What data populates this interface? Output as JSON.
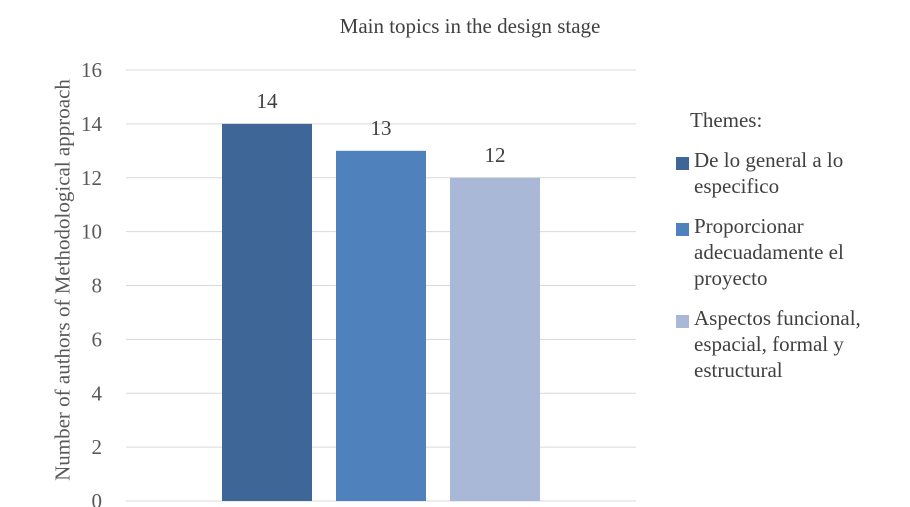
{
  "chart_data": {
    "type": "bar",
    "title": "Main topics in the design stage",
    "xlabel": "",
    "ylabel": "Number of authors of Methodological approach",
    "ylim": [
      0,
      16
    ],
    "yticks": [
      "0",
      "2",
      "4",
      "6",
      "8",
      "10",
      "12",
      "14",
      "16"
    ],
    "grid": true,
    "legend_position": "right",
    "legend_title": "Themes:",
    "series": [
      {
        "name": "De lo general a lo especifico",
        "values": [
          14
        ],
        "color": "#3E6697"
      },
      {
        "name": "Proporcionar adecuadamente el proyecto",
        "values": [
          13
        ],
        "color": "#4F81BD"
      },
      {
        "name": "Aspectos funcional, espacial, formal y estructural",
        "values": [
          12
        ],
        "color": "#A9B8D6"
      }
    ],
    "data_labels": [
      "14",
      "13",
      "12"
    ]
  }
}
